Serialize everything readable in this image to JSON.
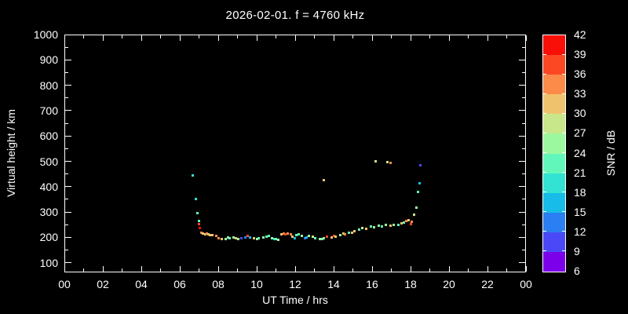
{
  "window": {
    "background": "#000000",
    "foreground": "#ffffff"
  },
  "chart_data": {
    "type": "scatter",
    "title": "2026-02-01. f = 4760 kHz",
    "xlabel": "UT Time / hrs",
    "ylabel": "Virtual height / km",
    "xlim": [
      0,
      24
    ],
    "ylim": [
      62,
      1000
    ],
    "grid": false,
    "xtick_hours": [
      0,
      2,
      4,
      6,
      8,
      10,
      12,
      14,
      16,
      18,
      20,
      22,
      24
    ],
    "xtick_labels": [
      "00",
      "02",
      "04",
      "06",
      "08",
      "10",
      "12",
      "14",
      "16",
      "18",
      "20",
      "22",
      "00"
    ],
    "xminor_hours": [
      1,
      3,
      5,
      7,
      9,
      11,
      13,
      15,
      17,
      19,
      21,
      23
    ],
    "ytick_km": [
      100,
      200,
      300,
      400,
      500,
      600,
      700,
      800,
      900,
      1000
    ],
    "ytick_labels": [
      "100",
      "200",
      "300",
      "400",
      "500",
      "600",
      "700",
      "800",
      "900",
      "1000"
    ],
    "yminor_km": [
      150,
      250,
      350,
      450,
      550,
      650,
      750,
      850,
      950
    ],
    "colorbar": {
      "label": "SNR / dB",
      "min": 6,
      "max": 42,
      "step": 3,
      "tick_labels": [
        "6",
        "9",
        "12",
        "15",
        "18",
        "21",
        "24",
        "27",
        "30",
        "33",
        "36",
        "39",
        "42"
      ],
      "colors_low_to_high": [
        "#7D00EB",
        "#4B49F7",
        "#2B7FF2",
        "#17BCE9",
        "#32E3D3",
        "#62F7BA",
        "#9BF89E",
        "#C7E78A",
        "#EFC36E",
        "#FC8B49",
        "#FC4823",
        "#FA0E08"
      ]
    },
    "points_hour_km_snr": [
      [
        6.69,
        444,
        19
      ],
      [
        6.82,
        351,
        19
      ],
      [
        6.9,
        295,
        22
      ],
      [
        6.98,
        264,
        22
      ],
      [
        7.02,
        252,
        37
      ],
      [
        7.06,
        236,
        40
      ],
      [
        7.14,
        218,
        34
      ],
      [
        7.22,
        215,
        31
      ],
      [
        7.31,
        212,
        31
      ],
      [
        7.39,
        215,
        34
      ],
      [
        7.47,
        212,
        32
      ],
      [
        7.59,
        209,
        31
      ],
      [
        7.71,
        209,
        30
      ],
      [
        7.88,
        205,
        34
      ],
      [
        8.0,
        196,
        33
      ],
      [
        8.2,
        193,
        31
      ],
      [
        8.37,
        193,
        25
      ],
      [
        8.49,
        199,
        26
      ],
      [
        8.61,
        196,
        22
      ],
      [
        8.78,
        199,
        25
      ],
      [
        8.9,
        196,
        30
      ],
      [
        9.06,
        193,
        26
      ],
      [
        9.22,
        196,
        10
      ],
      [
        9.39,
        199,
        13
      ],
      [
        9.55,
        205,
        38
      ],
      [
        9.67,
        199,
        16
      ],
      [
        9.84,
        196,
        31
      ],
      [
        10.0,
        193,
        25
      ],
      [
        10.12,
        196,
        22
      ],
      [
        10.33,
        199,
        26
      ],
      [
        10.53,
        202,
        23
      ],
      [
        10.65,
        205,
        22
      ],
      [
        10.78,
        196,
        25
      ],
      [
        10.9,
        193,
        19
      ],
      [
        11.02,
        193,
        22
      ],
      [
        11.14,
        190,
        25
      ],
      [
        11.27,
        212,
        31
      ],
      [
        11.39,
        215,
        34
      ],
      [
        11.51,
        212,
        37
      ],
      [
        11.63,
        215,
        34
      ],
      [
        11.76,
        212,
        33
      ],
      [
        11.84,
        202,
        30
      ],
      [
        11.96,
        196,
        17
      ],
      [
        12.08,
        209,
        22
      ],
      [
        12.2,
        212,
        23
      ],
      [
        12.33,
        205,
        26
      ],
      [
        12.49,
        196,
        13
      ],
      [
        12.61,
        199,
        16
      ],
      [
        12.73,
        205,
        25
      ],
      [
        12.9,
        202,
        28
      ],
      [
        13.06,
        196,
        22
      ],
      [
        13.27,
        193,
        25
      ],
      [
        13.39,
        193,
        23
      ],
      [
        13.51,
        196,
        26
      ],
      [
        13.51,
        426,
        31
      ],
      [
        13.67,
        202,
        38
      ],
      [
        13.88,
        199,
        31
      ],
      [
        14.04,
        205,
        37
      ],
      [
        14.12,
        202,
        30
      ],
      [
        14.33,
        209,
        26
      ],
      [
        14.49,
        215,
        31
      ],
      [
        14.61,
        212,
        34
      ],
      [
        14.78,
        218,
        22
      ],
      [
        14.94,
        218,
        30
      ],
      [
        15.1,
        224,
        31
      ],
      [
        15.31,
        230,
        23
      ],
      [
        15.51,
        237,
        28
      ],
      [
        15.71,
        233,
        30
      ],
      [
        15.92,
        243,
        22
      ],
      [
        16.12,
        240,
        25
      ],
      [
        16.2,
        500,
        28
      ],
      [
        16.33,
        246,
        26
      ],
      [
        16.53,
        243,
        22
      ],
      [
        16.73,
        249,
        25
      ],
      [
        16.78,
        497,
        28
      ],
      [
        16.94,
        246,
        30
      ],
      [
        16.94,
        494,
        34
      ],
      [
        17.14,
        249,
        26
      ],
      [
        17.35,
        249,
        23
      ],
      [
        17.55,
        255,
        31
      ],
      [
        17.67,
        258,
        22
      ],
      [
        17.76,
        264,
        34
      ],
      [
        17.88,
        268,
        31
      ],
      [
        18.04,
        252,
        38
      ],
      [
        18.08,
        261,
        34
      ],
      [
        18.2,
        288,
        28
      ],
      [
        18.29,
        316,
        25
      ],
      [
        18.37,
        378,
        22
      ],
      [
        18.45,
        412,
        16
      ],
      [
        18.53,
        486,
        10
      ]
    ]
  }
}
